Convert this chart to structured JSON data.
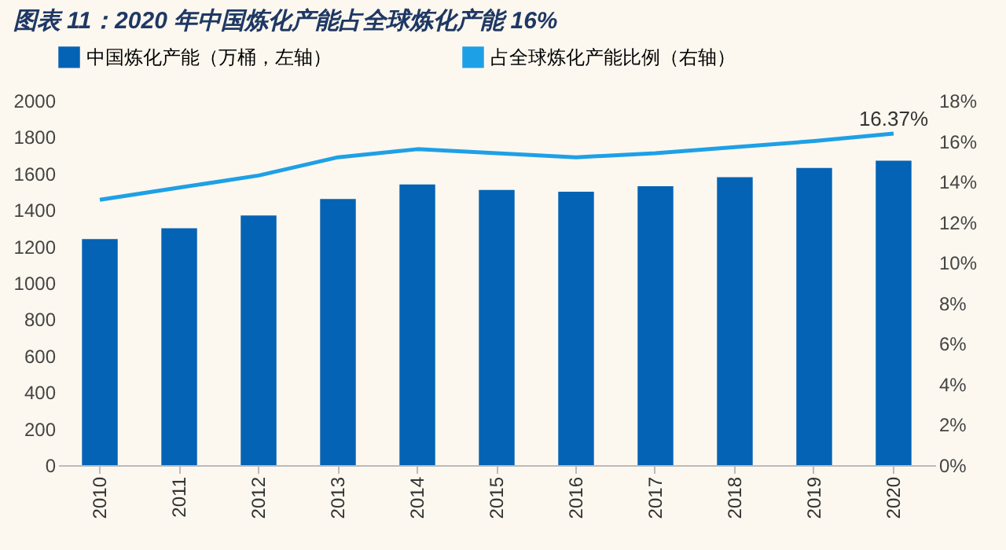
{
  "chart_data": {
    "type": "bar",
    "title": "图表 11：2020 年中国炼化产能占全球炼化产能 16%",
    "categories": [
      "2010",
      "2011",
      "2012",
      "2013",
      "2014",
      "2015",
      "2016",
      "2017",
      "2018",
      "2019",
      "2020"
    ],
    "series": [
      {
        "name": "中国炼化产能（万桶，左轴）",
        "color": "#0563b5",
        "values": [
          1240,
          1300,
          1370,
          1460,
          1540,
          1510,
          1500,
          1530,
          1580,
          1630,
          1670
        ]
      },
      {
        "name": "占全球炼化产能比例（右轴）",
        "type": "line",
        "axis": "y2",
        "color": "#1ea0e6",
        "values": [
          13.1,
          13.7,
          14.3,
          15.2,
          15.6,
          15.4,
          15.2,
          15.4,
          15.7,
          16.0,
          16.37
        ],
        "value_labels": [
          null,
          null,
          null,
          null,
          null,
          null,
          null,
          null,
          null,
          null,
          "16.37%"
        ]
      }
    ],
    "ylim": [
      0,
      2000
    ],
    "yticks": [
      0,
      200,
      400,
      600,
      800,
      1000,
      1200,
      1400,
      1600,
      1800,
      2000
    ],
    "y2lim": [
      0,
      18
    ],
    "y2ticks": [
      {
        "value": 0,
        "label": "0%"
      },
      {
        "value": 2,
        "label": "2%"
      },
      {
        "value": 4,
        "label": "4%"
      },
      {
        "value": 6,
        "label": "6%"
      },
      {
        "value": 8,
        "label": "8%"
      },
      {
        "value": 10,
        "label": "10%"
      },
      {
        "value": 12,
        "label": "12%"
      },
      {
        "value": 14,
        "label": "14%"
      },
      {
        "value": 16,
        "label": "16%"
      },
      {
        "value": 18,
        "label": "18%"
      }
    ],
    "legend": "top",
    "grid": false
  }
}
